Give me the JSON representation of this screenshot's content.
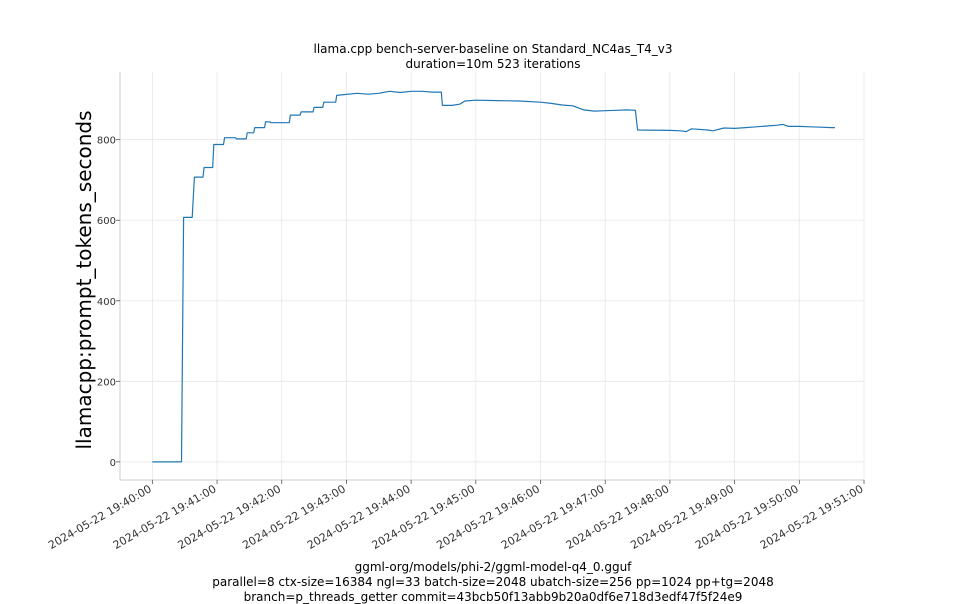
{
  "title_line1": "llama.cpp bench-server-baseline on Standard_NC4as_T4_v3",
  "title_line2": "duration=10m 523 iterations",
  "footer": {
    "line1": "ggml-org/models/phi-2/ggml-model-q4_0.gguf",
    "line2": "parallel=8 ctx-size=16384 ngl=33 batch-size=2048 ubatch-size=256 pp=1024 pp+tg=2048",
    "line3": "branch=p_threads_getter commit=43bcb50f13abb9b20a0df6e718d3edf47f5f24e9"
  },
  "chart_data": {
    "type": "line",
    "title": "llama.cpp bench-server-baseline on Standard_NC4as_T4_v3\nduration=10m 523 iterations",
    "xlabel": "",
    "ylabel": "llamacpp:prompt_tokens_seconds",
    "x_ticks": [
      "2024-05-22 19:40:00",
      "2024-05-22 19:41:00",
      "2024-05-22 19:42:00",
      "2024-05-22 19:43:00",
      "2024-05-22 19:44:00",
      "2024-05-22 19:45:00",
      "2024-05-22 19:46:00",
      "2024-05-22 19:47:00",
      "2024-05-22 19:48:00",
      "2024-05-22 19:49:00",
      "2024-05-22 19:50:00",
      "2024-05-22 19:51:00"
    ],
    "y_ticks": [
      0,
      200,
      400,
      600,
      800
    ],
    "xlim": [
      "2024-05-22 19:39:30",
      "2024-05-22 19:51:00"
    ],
    "ylim": [
      -45,
      968
    ],
    "grid": true,
    "line_color": "#1f77b4",
    "series": [
      {
        "x": [
          "2024-05-22 19:40:00",
          "2024-05-22 19:40:27",
          "2024-05-22 19:40:29",
          "2024-05-22 19:40:37",
          "2024-05-22 19:40:39",
          "2024-05-22 19:40:47",
          "2024-05-22 19:40:48",
          "2024-05-22 19:40:56",
          "2024-05-22 19:40:57",
          "2024-05-22 19:41:06",
          "2024-05-22 19:41:07",
          "2024-05-22 19:41:17",
          "2024-05-22 19:41:18",
          "2024-05-22 19:41:27",
          "2024-05-22 19:41:28",
          "2024-05-22 19:41:34",
          "2024-05-22 19:41:35",
          "2024-05-22 19:41:44",
          "2024-05-22 19:41:45",
          "2024-05-22 19:41:49",
          "2024-05-22 19:41:50",
          "2024-05-22 19:42:07",
          "2024-05-22 19:42:08",
          "2024-05-22 19:42:17",
          "2024-05-22 19:42:18",
          "2024-05-22 19:42:29",
          "2024-05-22 19:42:30",
          "2024-05-22 19:42:38",
          "2024-05-22 19:42:39",
          "2024-05-22 19:42:50",
          "2024-05-22 19:42:51",
          "2024-05-22 19:43:10",
          "2024-05-22 19:43:20",
          "2024-05-22 19:43:30",
          "2024-05-22 19:43:40",
          "2024-05-22 19:43:50",
          "2024-05-22 19:44:00",
          "2024-05-22 19:44:10",
          "2024-05-22 19:44:20",
          "2024-05-22 19:44:28",
          "2024-05-22 19:44:29",
          "2024-05-22 19:44:38",
          "2024-05-22 19:44:45",
          "2024-05-22 19:44:50",
          "2024-05-22 19:45:00",
          "2024-05-22 19:45:20",
          "2024-05-22 19:45:40",
          "2024-05-22 19:46:00",
          "2024-05-22 19:46:10",
          "2024-05-22 19:46:20",
          "2024-05-22 19:46:30",
          "2024-05-22 19:46:40",
          "2024-05-22 19:46:50",
          "2024-05-22 19:47:00",
          "2024-05-22 19:47:10",
          "2024-05-22 19:47:20",
          "2024-05-22 19:47:28",
          "2024-05-22 19:47:30",
          "2024-05-22 19:48:00",
          "2024-05-22 19:48:10",
          "2024-05-22 19:48:15",
          "2024-05-22 19:48:20",
          "2024-05-22 19:48:35",
          "2024-05-22 19:48:40",
          "2024-05-22 19:48:50",
          "2024-05-22 19:49:00",
          "2024-05-22 19:49:10",
          "2024-05-22 19:49:20",
          "2024-05-22 19:49:30",
          "2024-05-22 19:49:40",
          "2024-05-22 19:49:45",
          "2024-05-22 19:49:50",
          "2024-05-22 19:50:00",
          "2024-05-22 19:50:10",
          "2024-05-22 19:50:20",
          "2024-05-22 19:50:30",
          "2024-05-22 19:50:33"
        ],
        "y": [
          0,
          0,
          607,
          607,
          707,
          707,
          731,
          731,
          788,
          788,
          805,
          805,
          802,
          802,
          817,
          817,
          830,
          830,
          844,
          844,
          842,
          842,
          861,
          861,
          869,
          869,
          880,
          880,
          893,
          893,
          910,
          915,
          913,
          915,
          920,
          917,
          920,
          920,
          918,
          918,
          885,
          885,
          888,
          896,
          898,
          897,
          896,
          893,
          890,
          886,
          884,
          874,
          871,
          872,
          873,
          874,
          873,
          824,
          823,
          822,
          820,
          827,
          824,
          822,
          829,
          828,
          830,
          832,
          834,
          836,
          838,
          833,
          833,
          832,
          831,
          830,
          830
        ]
      }
    ]
  }
}
